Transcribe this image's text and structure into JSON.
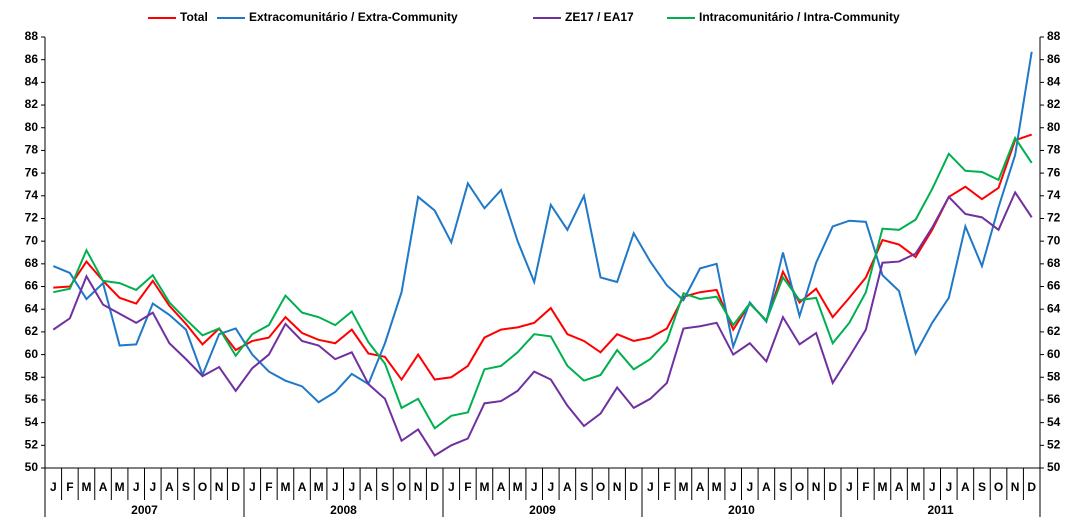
{
  "chart_data": {
    "type": "line",
    "categories": [
      "J",
      "F",
      "M",
      "A",
      "M",
      "J",
      "J",
      "A",
      "S",
      "O",
      "N",
      "D",
      "J",
      "F",
      "M",
      "A",
      "M",
      "J",
      "J",
      "A",
      "S",
      "O",
      "N",
      "D",
      "J",
      "F",
      "M",
      "A",
      "M",
      "J",
      "J",
      "A",
      "S",
      "O",
      "N",
      "D",
      "J",
      "F",
      "M",
      "A",
      "M",
      "J",
      "J",
      "A",
      "S",
      "O",
      "N",
      "D",
      "J",
      "F",
      "M",
      "A",
      "M",
      "J",
      "J",
      "A",
      "S",
      "O",
      "N",
      "D"
    ],
    "years": [
      "2007",
      "2008",
      "2009",
      "2010",
      "2011"
    ],
    "series": [
      {
        "name": "Total",
        "color": "#ff0000",
        "values": [
          65.9,
          66.0,
          68.2,
          66.5,
          65.0,
          64.5,
          66.5,
          64.3,
          62.7,
          60.9,
          62.3,
          60.4,
          61.2,
          61.5,
          63.3,
          61.9,
          61.3,
          61.0,
          62.2,
          60.1,
          59.8,
          57.8,
          60.0,
          57.8,
          58.0,
          59.0,
          61.5,
          62.2,
          62.4,
          62.8,
          64.1,
          61.8,
          61.2,
          60.2,
          61.8,
          61.2,
          61.5,
          62.3,
          65.1,
          65.5,
          65.7,
          62.2,
          64.5,
          63.0,
          67.3,
          64.6,
          65.8,
          63.3,
          65.0,
          66.8,
          70.1,
          69.7,
          68.6,
          71.0,
          73.9,
          74.8,
          73.7,
          74.7,
          78.9,
          79.4
        ]
      },
      {
        "name": "Extracomunitário / Extra-Community",
        "color": "#1f78c8",
        "values": [
          67.8,
          67.2,
          64.9,
          66.3,
          60.8,
          60.9,
          64.5,
          63.5,
          62.2,
          58.2,
          61.8,
          62.3,
          60.0,
          58.5,
          57.7,
          57.2,
          55.8,
          56.7,
          58.3,
          57.4,
          61.0,
          65.5,
          73.9,
          72.7,
          69.9,
          75.1,
          72.9,
          74.5,
          70.0,
          66.4,
          73.2,
          71.0,
          74.0,
          66.8,
          66.4,
          70.7,
          68.2,
          66.1,
          64.8,
          67.6,
          68.0,
          60.7,
          64.6,
          62.9,
          69.0,
          63.4,
          68.1,
          71.3,
          71.8,
          71.7,
          67.0,
          65.6,
          60.1,
          62.8,
          65.0,
          71.3,
          67.8,
          73.0,
          77.6,
          86.7
        ]
      },
      {
        "name": "ZE17 / EA17",
        "color": "#7030a0",
        "values": [
          62.2,
          63.2,
          66.9,
          64.4,
          63.6,
          62.8,
          63.7,
          61.0,
          59.6,
          58.1,
          58.9,
          56.8,
          58.8,
          60.0,
          62.7,
          61.2,
          60.8,
          59.6,
          60.2,
          57.4,
          56.1,
          52.4,
          53.4,
          51.1,
          52.0,
          52.6,
          55.7,
          55.9,
          56.8,
          58.5,
          57.8,
          55.5,
          53.7,
          54.8,
          57.1,
          55.3,
          56.1,
          57.5,
          62.3,
          62.5,
          62.8,
          60.0,
          61.0,
          59.4,
          63.3,
          60.9,
          61.9,
          57.5,
          59.8,
          62.2,
          68.1,
          68.2,
          68.9,
          71.2,
          73.9,
          72.4,
          72.1,
          71.0,
          74.3,
          72.1
        ]
      },
      {
        "name": "Intracomunitário / Intra-Community",
        "color": "#00b050",
        "values": [
          65.5,
          65.8,
          69.2,
          66.5,
          66.3,
          65.7,
          67.0,
          64.6,
          63.1,
          61.7,
          62.3,
          59.9,
          61.8,
          62.6,
          65.2,
          63.7,
          63.3,
          62.6,
          63.8,
          61.1,
          59.2,
          55.3,
          56.1,
          53.5,
          54.6,
          54.9,
          58.7,
          59.0,
          60.2,
          61.8,
          61.6,
          59.0,
          57.7,
          58.2,
          60.4,
          58.7,
          59.6,
          61.2,
          65.4,
          64.9,
          65.1,
          62.6,
          64.5,
          63.0,
          66.8,
          64.8,
          65.0,
          61.0,
          62.8,
          65.5,
          71.1,
          71.0,
          71.9,
          74.6,
          77.7,
          76.2,
          76.1,
          75.4,
          79.1,
          76.9
        ]
      }
    ],
    "ylim": [
      50,
      88
    ],
    "yticks": [
      50,
      52,
      54,
      56,
      58,
      60,
      62,
      64,
      66,
      68,
      70,
      72,
      74,
      76,
      78,
      80,
      82,
      84,
      86,
      88
    ],
    "y2lim": [
      50,
      88
    ],
    "y2ticks": [
      50,
      52,
      54,
      56,
      58,
      60,
      62,
      64,
      66,
      68,
      70,
      72,
      74,
      76,
      78,
      80,
      82,
      84,
      86,
      88
    ]
  }
}
